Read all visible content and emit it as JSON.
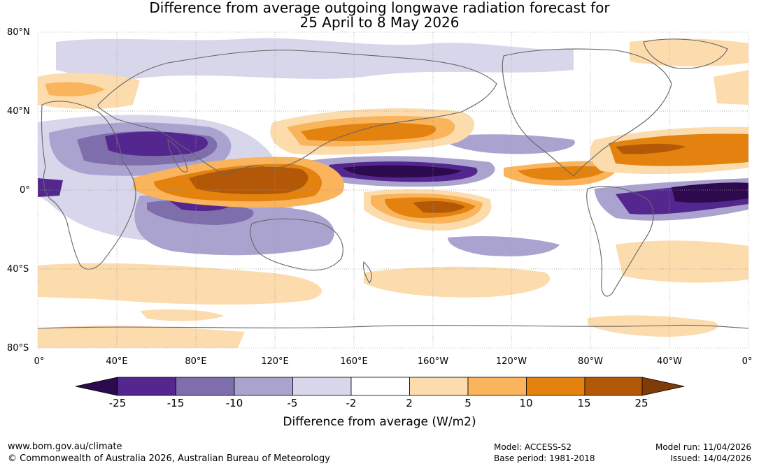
{
  "title": {
    "line1": "Difference from average outgoing longwave radiation forecast for",
    "line2": "25 April to 8 May 2026"
  },
  "map": {
    "lat_labels": [
      "80°N",
      "40°N",
      "0°",
      "40°S",
      "80°S"
    ],
    "lon_labels": [
      "0°",
      "40°E",
      "80°E",
      "120°E",
      "160°E",
      "160°W",
      "120°W",
      "80°W",
      "40°W",
      "0°"
    ]
  },
  "colorbar": {
    "ticks": [
      "-25",
      "-15",
      "-10",
      "-5",
      "-2",
      "2",
      "5",
      "10",
      "15",
      "25"
    ],
    "colors": [
      "#2d0a4e",
      "#54278f",
      "#7e6eab",
      "#aba3cf",
      "#d8d6ea",
      "#ffffff",
      "#fcdcad",
      "#f9b45c",
      "#e3820f",
      "#b35806",
      "#7f3b08"
    ],
    "title": "Difference from average (W/m2)"
  },
  "footer": {
    "site": "www.bom.gov.au/climate",
    "copyright": "© Commonwealth of Australia 2026, Australian Bureau of Meteorology",
    "model": "Model: ACCESS-S2",
    "base_period": "Base period: 1981-2018",
    "model_run": "Model run: 11/04/2026",
    "issued": "Issued: 14/04/2026"
  }
}
